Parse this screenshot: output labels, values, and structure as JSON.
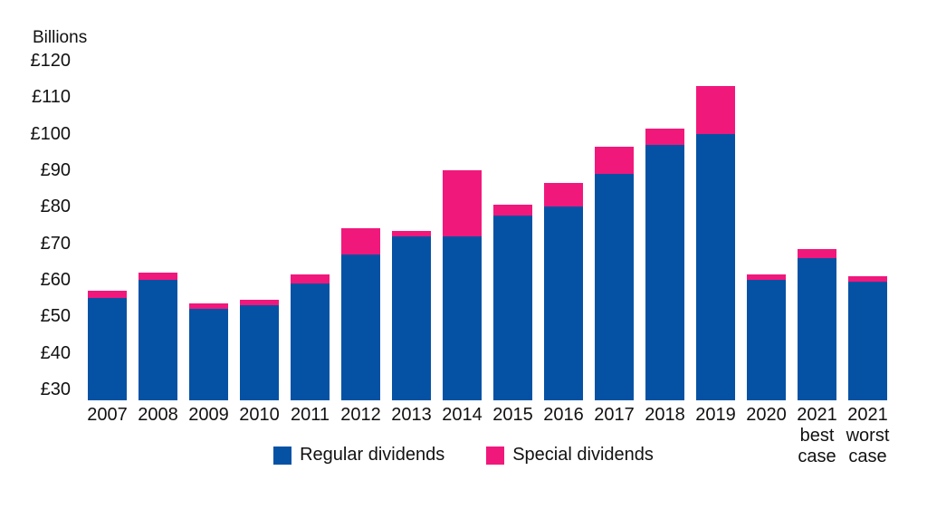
{
  "chart_data": {
    "type": "bar",
    "stacked": true,
    "unit_label": "Billions",
    "currency_prefix": "£",
    "categories": [
      "2007",
      "2008",
      "2009",
      "2010",
      "2011",
      "2012",
      "2013",
      "2014",
      "2015",
      "2016",
      "2017",
      "2018",
      "2019",
      "2020",
      "2021 best case",
      "2021 worst case"
    ],
    "series": [
      {
        "name": "Regular dividends",
        "color": "#0552A5",
        "values": [
          55,
          60,
          52,
          53,
          59,
          67,
          72,
          72,
          77.5,
          80,
          89,
          97,
          100,
          60,
          66,
          59.5
        ]
      },
      {
        "name": "Special dividends",
        "color": "#F1187C",
        "values": [
          2,
          2,
          1.5,
          1.5,
          2.5,
          7,
          1.5,
          18,
          3,
          6.5,
          7.5,
          4.5,
          13,
          1.5,
          2.5,
          1.5
        ]
      }
    ],
    "y_axis": {
      "ticks": [
        120,
        110,
        100,
        90,
        80,
        70,
        60,
        50,
        40,
        30
      ],
      "min": 27,
      "max": 120,
      "tick_prefix": "£",
      "title": "Billions"
    },
    "xlabel": "",
    "ylabel": "Billions",
    "ylim": [
      27,
      120
    ],
    "grid": false,
    "legend_position": "bottom",
    "background_color": "#ffffff",
    "text_color": "#111111"
  }
}
